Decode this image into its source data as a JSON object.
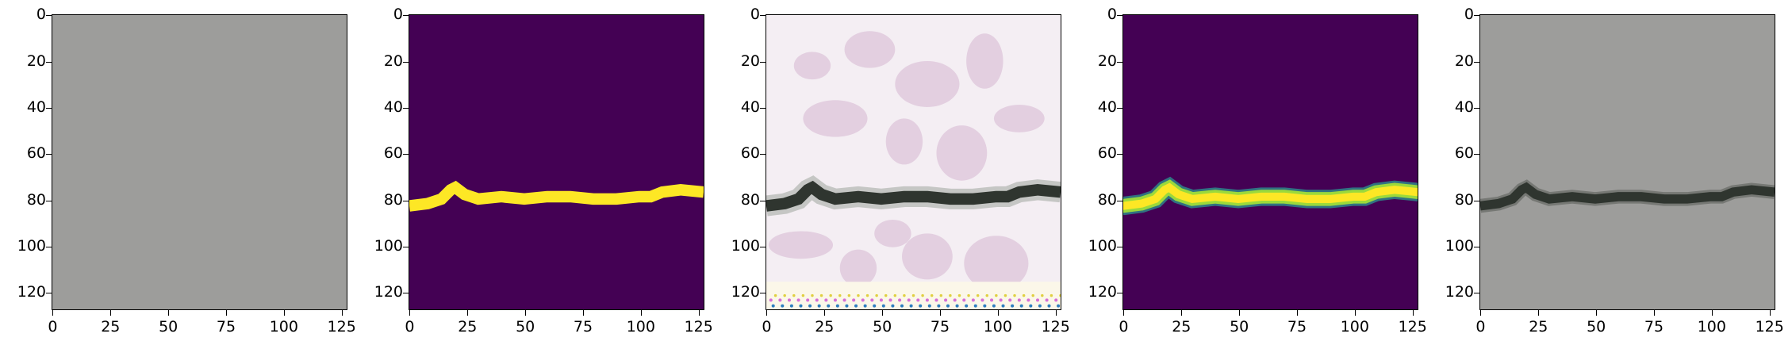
{
  "figure": {
    "panels": [
      {
        "id": "input-image"
      },
      {
        "id": "ground-truth-mask"
      },
      {
        "id": "generated-image"
      },
      {
        "id": "predicted-mask"
      },
      {
        "id": "overlay-image"
      }
    ],
    "y_ticks": [
      "0",
      "20",
      "40",
      "60",
      "80",
      "100",
      "120"
    ],
    "x_ticks": [
      "0",
      "25",
      "50",
      "75",
      "100",
      "125"
    ],
    "colors": {
      "gray_background": "#9d9d9b",
      "mask_background": "#440154",
      "mask_foreground": "#fde725",
      "crack_dark": "#2f352f",
      "generated_bg": "#f4eef3"
    }
  }
}
